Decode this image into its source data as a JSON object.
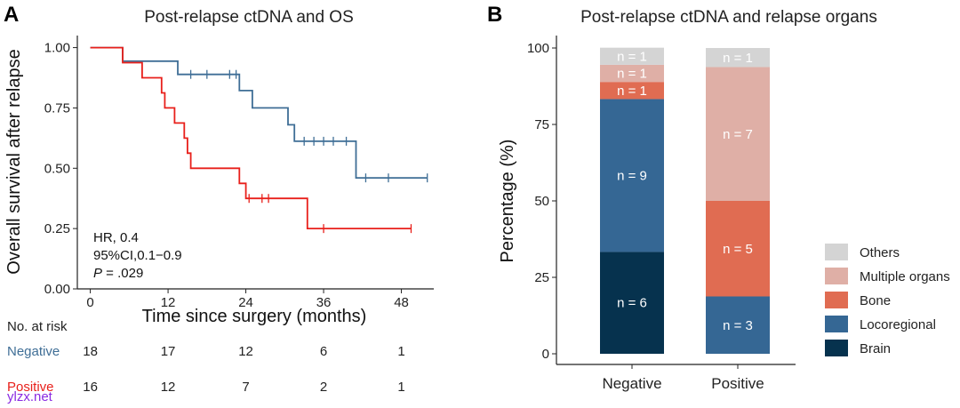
{
  "colors": {
    "negative": "#3F6E96",
    "positive": "#E8201B",
    "others": "#D4D4D4",
    "multiple_organs": "#DFAFA6",
    "bone": "#E06C52",
    "locoregional": "#356794",
    "brain": "#06324E"
  },
  "panelA": {
    "letter": "A",
    "note": {
      "hr": "HR, 0.4",
      "ci": "95%CI,0.1−0.9",
      "p_italic": "P",
      "p_rest": " = .029"
    },
    "risk_table": {
      "header": "No. at risk",
      "rows": [
        {
          "label": "Negative",
          "values": [
            "18",
            "17",
            "12",
            "6",
            "1"
          ]
        },
        {
          "label": "Positive",
          "values": [
            "16",
            "12",
            "7",
            "2",
            "1"
          ]
        }
      ]
    }
  },
  "panelB": {
    "letter": "B"
  },
  "watermark": "ylzx.net",
  "chart_data": [
    {
      "type": "line",
      "title": "Post-relapse ctDNA and OS",
      "xlabel": "Time since surgery (months)",
      "ylabel": "Overall survival after relapse",
      "xlim": [
        -2,
        53
      ],
      "ylim": [
        0,
        1.05
      ],
      "x_ticks": [
        0,
        12,
        24,
        36,
        48
      ],
      "y_ticks": [
        0,
        0.25,
        0.5,
        0.75,
        1.0
      ],
      "y_tick_labels": [
        "0.00",
        "0.25",
        "0.50",
        "0.75",
        "1.00"
      ],
      "series": [
        {
          "name": "Negative",
          "step_points": [
            [
              0,
              1
            ],
            [
              5,
              1
            ],
            [
              5,
              0.944
            ],
            [
              13.5,
              0.944
            ],
            [
              13.5,
              0.889
            ],
            [
              23,
              0.889
            ],
            [
              23,
              0.822
            ],
            [
              25,
              0.822
            ],
            [
              25,
              0.75
            ],
            [
              30.5,
              0.75
            ],
            [
              30.5,
              0.68
            ],
            [
              31.5,
              0.68
            ],
            [
              31.5,
              0.612
            ],
            [
              41,
              0.612
            ],
            [
              41,
              0.46
            ],
            [
              52,
              0.46
            ]
          ],
          "censor_x": [
            15.5,
            18,
            21.5,
            22.5,
            33,
            34.5,
            36,
            37.5,
            39.5,
            42.5,
            46,
            52
          ]
        },
        {
          "name": "Positive",
          "step_points": [
            [
              0,
              1
            ],
            [
              5,
              1
            ],
            [
              5,
              0.9375
            ],
            [
              8,
              0.9375
            ],
            [
              8,
              0.875
            ],
            [
              11,
              0.875
            ],
            [
              11,
              0.8125
            ],
            [
              11.5,
              0.8125
            ],
            [
              11.5,
              0.75
            ],
            [
              13,
              0.75
            ],
            [
              13,
              0.6875
            ],
            [
              14.5,
              0.6875
            ],
            [
              14.5,
              0.625
            ],
            [
              15,
              0.625
            ],
            [
              15,
              0.5625
            ],
            [
              15.5,
              0.5625
            ],
            [
              15.5,
              0.5
            ],
            [
              23,
              0.5
            ],
            [
              23,
              0.4375
            ],
            [
              24,
              0.4375
            ],
            [
              24,
              0.375
            ],
            [
              33.5,
              0.375
            ],
            [
              33.5,
              0.25
            ],
            [
              49.5,
              0.25
            ]
          ],
          "censor_x": [
            24.5,
            26.5,
            27.5,
            36,
            49.5
          ]
        }
      ]
    },
    {
      "type": "bar",
      "stacked": true,
      "title": "Post-relapse ctDNA and relapse organs",
      "xlabel": "",
      "ylabel": "Percentage (%)",
      "categories": [
        "Negative",
        "Positive"
      ],
      "ylim": [
        0,
        100
      ],
      "y_ticks": [
        0,
        25,
        50,
        75,
        100
      ],
      "legend_position": "right",
      "series": [
        {
          "name": "Brain",
          "values": [
            33.3,
            0
          ],
          "labels": [
            "n = 6",
            ""
          ]
        },
        {
          "name": "Locoregional",
          "values": [
            50.0,
            18.75
          ],
          "labels": [
            "n = 9",
            "n = 3"
          ]
        },
        {
          "name": "Bone",
          "values": [
            5.6,
            31.25
          ],
          "labels": [
            "n = 1",
            "n = 5"
          ]
        },
        {
          "name": "Multiple organs",
          "values": [
            5.6,
            43.75
          ],
          "labels": [
            "n = 1",
            "n = 7"
          ]
        },
        {
          "name": "Others",
          "values": [
            5.6,
            6.25
          ],
          "labels": [
            "n = 1",
            "n = 1"
          ]
        }
      ],
      "legend_order": [
        "Others",
        "Multiple organs",
        "Bone",
        "Locoregional",
        "Brain"
      ]
    }
  ]
}
